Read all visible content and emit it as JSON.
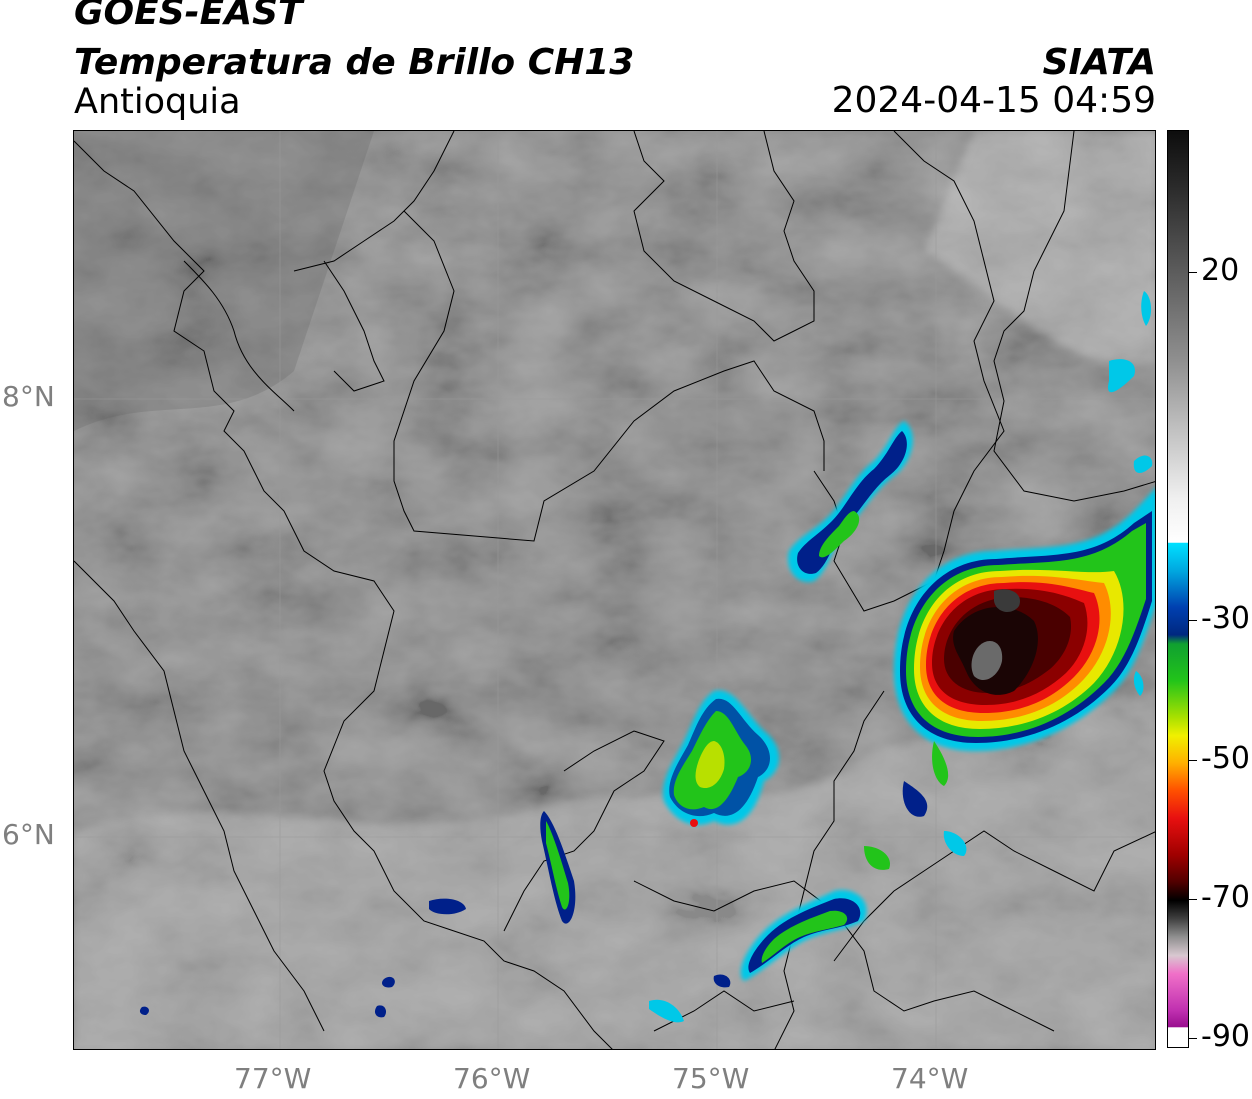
{
  "header": {
    "satellite": "GOES-EAST",
    "product": "Temperatura de Brillo CH13",
    "region": "Antioquia",
    "org": "SIATA",
    "timestamp": "2024-04-15 04:59"
  },
  "map": {
    "lat_labels": [
      "8°N",
      "6°N"
    ],
    "lon_labels": [
      "77°W",
      "76°W",
      "75°W",
      "74°W"
    ]
  },
  "colorbar": {
    "ticks": [
      "20",
      "-30",
      "-50",
      "-70",
      "-90"
    ],
    "range": [
      -90,
      30
    ]
  },
  "colors": {
    "cold_core": "#1a0000",
    "deep_red": "#8b0000",
    "red": "#e81010",
    "orange": "#ff8c00",
    "yellow": "#e8e800",
    "green": "#22c41a",
    "dark_blue": "#00208a",
    "cyan": "#00c8e8",
    "magenta": "#c030b0"
  }
}
